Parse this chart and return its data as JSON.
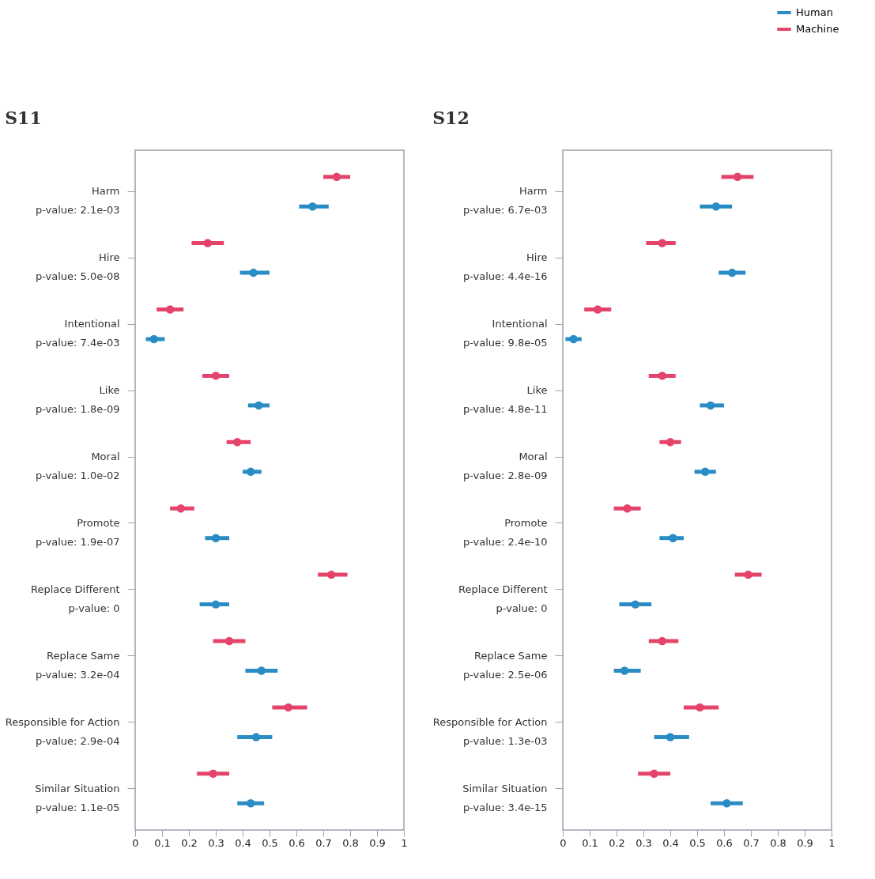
{
  "chart_data": [
    {
      "type": "scatter",
      "orientation": "horizontal",
      "title": "S11",
      "categories": [
        "Harm\np-value: 2.1e-03",
        "Hire\np-value: 5.0e-08",
        "Intentional\np-value: 7.4e-03",
        "Like\np-value: 1.8e-09",
        "Moral\np-value: 1.0e-02",
        "Promote\np-value: 1.9e-07",
        "Replace Different\np-value: 0",
        "Replace Same\np-value: 3.2e-04",
        "Responsible for Action\np-value: 2.9e-04",
        "Similar Situation\np-value: 1.1e-05"
      ],
      "series": [
        {
          "name": "Human",
          "color": "#2a8cc4",
          "values": [
            0.66,
            0.44,
            0.07,
            0.46,
            0.43,
            0.3,
            0.3,
            0.47,
            0.45,
            0.43
          ],
          "errors": [
            [
              0.61,
              0.72
            ],
            [
              0.39,
              0.5
            ],
            [
              0.04,
              0.11
            ],
            [
              0.42,
              0.5
            ],
            [
              0.4,
              0.47
            ],
            [
              0.26,
              0.35
            ],
            [
              0.24,
              0.35
            ],
            [
              0.41,
              0.53
            ],
            [
              0.38,
              0.51
            ],
            [
              0.38,
              0.48
            ]
          ]
        },
        {
          "name": "Machine",
          "color": "#e5446a",
          "values": [
            0.75,
            0.27,
            0.13,
            0.3,
            0.38,
            0.17,
            0.73,
            0.35,
            0.57,
            0.29
          ],
          "errors": [
            [
              0.7,
              0.8
            ],
            [
              0.21,
              0.33
            ],
            [
              0.08,
              0.18
            ],
            [
              0.25,
              0.35
            ],
            [
              0.34,
              0.43
            ],
            [
              0.13,
              0.22
            ],
            [
              0.68,
              0.79
            ],
            [
              0.29,
              0.41
            ],
            [
              0.51,
              0.64
            ],
            [
              0.23,
              0.35
            ]
          ]
        }
      ],
      "xlim": [
        0,
        1
      ],
      "xticks": [
        0,
        0.1,
        0.2,
        0.3,
        0.4,
        0.5,
        0.6,
        0.7,
        0.8,
        0.9,
        1
      ],
      "legend": "top right",
      "marker": "circle",
      "grid": false
    },
    {
      "type": "scatter",
      "orientation": "horizontal",
      "title": "S12",
      "categories": [
        "Harm\np-value: 6.7e-03",
        "Hire\np-value: 4.4e-16",
        "Intentional\np-value: 9.8e-05",
        "Like\np-value: 4.8e-11",
        "Moral\np-value: 2.8e-09",
        "Promote\np-value: 2.4e-10",
        "Replace Different\np-value: 0",
        "Replace Same\np-value: 2.5e-06",
        "Responsible for Action\np-value: 1.3e-03",
        "Similar Situation\np-value: 3.4e-15"
      ],
      "series": [
        {
          "name": "Human",
          "color": "#2a8cc4",
          "values": [
            0.57,
            0.63,
            0.04,
            0.55,
            0.53,
            0.41,
            0.27,
            0.23,
            0.4,
            0.61
          ],
          "errors": [
            [
              0.51,
              0.63
            ],
            [
              0.58,
              0.68
            ],
            [
              0.01,
              0.07
            ],
            [
              0.51,
              0.6
            ],
            [
              0.49,
              0.57
            ],
            [
              0.36,
              0.45
            ],
            [
              0.21,
              0.33
            ],
            [
              0.19,
              0.29
            ],
            [
              0.34,
              0.47
            ],
            [
              0.55,
              0.67
            ]
          ]
        },
        {
          "name": "Machine",
          "color": "#e5446a",
          "values": [
            0.65,
            0.37,
            0.13,
            0.37,
            0.4,
            0.24,
            0.69,
            0.37,
            0.51,
            0.34
          ],
          "errors": [
            [
              0.59,
              0.71
            ],
            [
              0.31,
              0.42
            ],
            [
              0.08,
              0.18
            ],
            [
              0.32,
              0.42
            ],
            [
              0.36,
              0.44
            ],
            [
              0.19,
              0.29
            ],
            [
              0.64,
              0.74
            ],
            [
              0.32,
              0.43
            ],
            [
              0.45,
              0.58
            ],
            [
              0.28,
              0.4
            ]
          ]
        }
      ],
      "xlim": [
        0,
        1
      ],
      "xticks": [
        0,
        0.1,
        0.2,
        0.3,
        0.4,
        0.5,
        0.6,
        0.7,
        0.8,
        0.9,
        1
      ],
      "legend": "top right",
      "marker": "circle",
      "grid": false
    }
  ]
}
